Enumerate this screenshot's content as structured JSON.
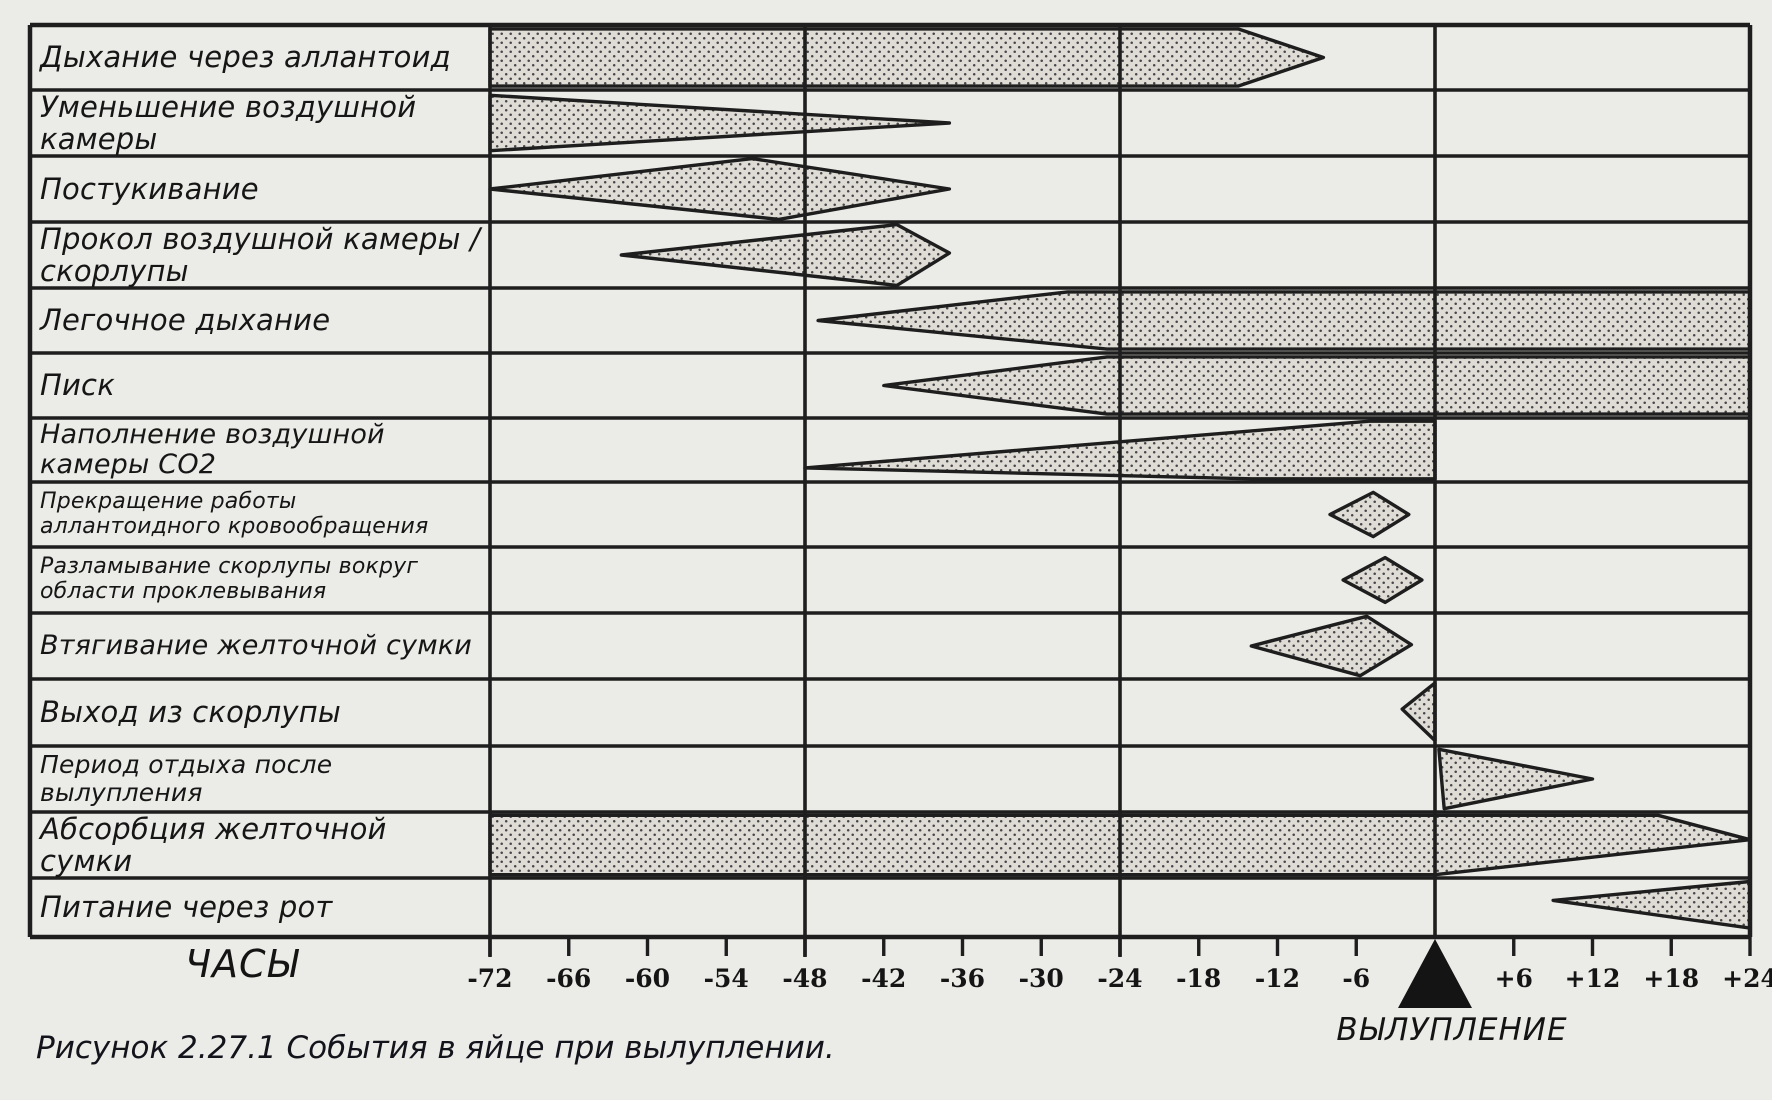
{
  "figure": {
    "caption": "Рисунок 2.27.1 События в яйце при вылуплении."
  },
  "chart_data": {
    "type": "gantt-intensity-timeline",
    "title": "События в яйце при вылуплении",
    "xlabel": "ЧАСЫ",
    "hatch_label": "ВЫЛУПЛЕНИЕ",
    "x_range_hours": [
      -72,
      24
    ],
    "hatch_marker_hour": 0,
    "gridlines_hours": [
      -72,
      -48,
      -24,
      0
    ],
    "x_ticks": [
      -72,
      -66,
      -60,
      -54,
      -48,
      -42,
      -36,
      -30,
      -24,
      -18,
      -12,
      -6,
      6,
      12,
      18,
      24
    ],
    "x_tick_labels": [
      "-72",
      "-66",
      "-60",
      "-54",
      "-48",
      "-42",
      "-36",
      "-30",
      "-24",
      "-18",
      "-12",
      "-6",
      "+6",
      "+12",
      "+18",
      "+24"
    ],
    "legend_position": "none",
    "grid": "partial-vertical",
    "colors": {
      "ink": "#1e1e1e",
      "shape_fill": "#dedcd4",
      "shape_dot": "#45454a",
      "paper": "#ebece7",
      "marker": "#141414"
    },
    "rows": [
      {
        "label": "Дыхание через аллантоид",
        "interval_hours": [
          -72,
          -8.5
        ],
        "shape_hours_frac": [
          [
            -72,
            0.06
          ],
          [
            -15,
            0.06
          ],
          [
            -8.5,
            0.5
          ],
          [
            -15,
            0.94
          ],
          [
            -72,
            0.94
          ]
        ]
      },
      {
        "label": "Уменьшение воздушной\nкамеры",
        "interval_hours": [
          -72,
          -37
        ],
        "shape_hours_frac": [
          [
            -72,
            0.08
          ],
          [
            -37,
            0.5
          ],
          [
            -72,
            0.92
          ]
        ]
      },
      {
        "label": "Постукивание",
        "interval_hours": [
          -72,
          -37
        ],
        "shape_hours_frac": [
          [
            -72,
            0.5
          ],
          [
            -52,
            0.04
          ],
          [
            -37,
            0.5
          ],
          [
            -50,
            0.96
          ]
        ]
      },
      {
        "label": "Прокол воздушной камеры /\nскорлупы",
        "interval_hours": [
          -62,
          -37
        ],
        "shape_hours_frac": [
          [
            -62,
            0.5
          ],
          [
            -41,
            0.04
          ],
          [
            -37,
            0.47
          ],
          [
            -41,
            0.96
          ]
        ]
      },
      {
        "label": "Легочное дыхание",
        "interval_hours": [
          -47,
          24
        ],
        "shape_hours_frac": [
          [
            -47,
            0.5
          ],
          [
            -28,
            0.06
          ],
          [
            24,
            0.06
          ],
          [
            24,
            0.94
          ],
          [
            -25,
            0.94
          ]
        ]
      },
      {
        "label": "Писк",
        "interval_hours": [
          -42,
          24
        ],
        "shape_hours_frac": [
          [
            -42,
            0.5
          ],
          [
            -25,
            0.06
          ],
          [
            24,
            0.06
          ],
          [
            24,
            0.94
          ],
          [
            -25,
            0.94
          ]
        ]
      },
      {
        "label": "Наполнение воздушной\nкамеры CO2",
        "interval_hours": [
          -48,
          0
        ],
        "shape_hours_frac": [
          [
            -48,
            0.78
          ],
          [
            -5,
            0.05
          ],
          [
            0,
            0.05
          ],
          [
            0,
            0.95
          ],
          [
            -14,
            0.95
          ]
        ]
      },
      {
        "label": "Прекращение работы\nаллантоидного кровообращения",
        "interval_hours": [
          -8,
          -2
        ],
        "shape_hours_frac": [
          [
            -8,
            0.5
          ],
          [
            -4.7,
            0.16
          ],
          [
            -2,
            0.5
          ],
          [
            -4.7,
            0.84
          ]
        ]
      },
      {
        "label": "Разламывание скорлупы вокруг\nобласти проклевывания",
        "interval_hours": [
          -7,
          -1
        ],
        "shape_hours_frac": [
          [
            -7,
            0.5
          ],
          [
            -3.8,
            0.16
          ],
          [
            -1,
            0.5
          ],
          [
            -3.8,
            0.84
          ]
        ]
      },
      {
        "label": "Втягивание желточной сумки",
        "interval_hours": [
          -14,
          -1.8
        ],
        "shape_hours_frac": [
          [
            -14,
            0.5
          ],
          [
            -5.2,
            0.05
          ],
          [
            -1.8,
            0.48
          ],
          [
            -5.7,
            0.95
          ]
        ]
      },
      {
        "label": "Выход из скорлупы",
        "interval_hours": [
          -2.5,
          0
        ],
        "shape_hours_frac": [
          [
            0,
            0.06
          ],
          [
            -2.5,
            0.45
          ],
          [
            0,
            0.92
          ]
        ]
      },
      {
        "label": "Период отдыха после вылупления",
        "interval_hours": [
          0,
          12
        ],
        "shape_hours_frac": [
          [
            0.3,
            0.05
          ],
          [
            12,
            0.5
          ],
          [
            0.7,
            0.95
          ]
        ]
      },
      {
        "label": "Абсорбция желточной сумки",
        "interval_hours": [
          -72,
          24
        ],
        "shape_hours_frac": [
          [
            -72,
            0.05
          ],
          [
            17,
            0.05
          ],
          [
            24,
            0.42
          ],
          [
            0,
            0.95
          ],
          [
            -72,
            0.95
          ]
        ]
      },
      {
        "label": "Питание через рот",
        "interval_hours": [
          9,
          24
        ],
        "shape_hours_frac": [
          [
            24,
            0.06
          ],
          [
            9,
            0.38
          ],
          [
            24,
            0.85
          ]
        ]
      }
    ]
  }
}
